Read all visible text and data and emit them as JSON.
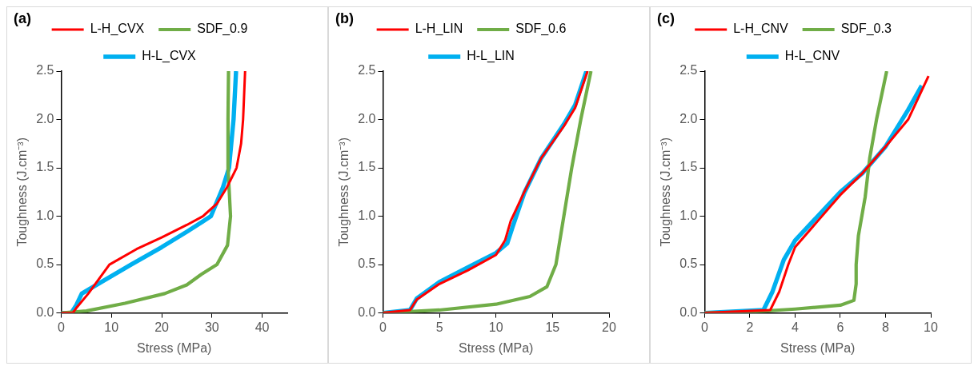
{
  "chart_data": [
    {
      "type": "line",
      "title": "(a)",
      "xlabel": "Stress (MPa)",
      "ylabel": "Toughness (J.cm⁻³)",
      "xlim": [
        0,
        45
      ],
      "xticks": [
        0,
        10,
        20,
        30,
        40
      ],
      "ylim": [
        0,
        2.5
      ],
      "yticks": [
        {
          "value": 0,
          "label": "0.0"
        },
        0.5,
        {
          "value": 1,
          "label": "1.0"
        },
        1.5,
        {
          "value": 2,
          "label": "2.0"
        },
        2.5
      ],
      "grid": false,
      "legend": "top",
      "series": [
        {
          "name": "L-H_CVX",
          "color": "#ff0000",
          "x": [
            0,
            2.3,
            3,
            5.4,
            9.6,
            15,
            20,
            25,
            28.2,
            31,
            33,
            34.9,
            35.8,
            36.2,
            36.6
          ],
          "values": [
            0,
            0,
            0.05,
            0.2,
            0.5,
            0.66,
            0.78,
            0.91,
            1.0,
            1.13,
            1.3,
            1.5,
            1.75,
            2.0,
            2.5
          ]
        },
        {
          "name": "SDF_0.9",
          "color": "#70ad47",
          "x": [
            0,
            5,
            12.7,
            20.6,
            25,
            27.9,
            31,
            33.1,
            33.7,
            33.4,
            33.2,
            33.2,
            33.3
          ],
          "values": [
            0,
            0.02,
            0.1,
            0.2,
            0.29,
            0.4,
            0.5,
            0.7,
            1.0,
            1.3,
            1.5,
            2.0,
            2.5
          ]
        },
        {
          "name": "H-L_CVX",
          "color": "#00b0f0",
          "x": [
            0,
            2,
            3,
            4.1,
            8,
            13.9,
            20,
            25,
            29.8,
            32.2,
            33.4,
            34.3,
            34.8
          ],
          "values": [
            0,
            0,
            0.08,
            0.2,
            0.32,
            0.5,
            0.68,
            0.84,
            1.0,
            1.3,
            1.5,
            2.0,
            2.5
          ]
        }
      ]
    },
    {
      "type": "line",
      "title": "(b)",
      "xlabel": "Stress (MPa)",
      "ylabel": "Toughness (J.cm⁻³)",
      "xlim": [
        0,
        20
      ],
      "xticks": [
        0,
        5,
        10,
        15,
        20
      ],
      "ylim": [
        0,
        2.5
      ],
      "yticks": [
        {
          "value": 0,
          "label": "0.0"
        },
        0.5,
        {
          "value": 1,
          "label": "1.0"
        },
        1.5,
        {
          "value": 2,
          "label": "2.0"
        },
        2.5
      ],
      "grid": false,
      "legend": "top",
      "series": [
        {
          "name": "L-H_LIN",
          "color": "#ff0000",
          "x": [
            0,
            2.4,
            3,
            5,
            7.5,
            10,
            10.8,
            11.3,
            12.5,
            14,
            16,
            17,
            18.1
          ],
          "values": [
            0,
            0.03,
            0.14,
            0.3,
            0.44,
            0.6,
            0.75,
            0.95,
            1.25,
            1.6,
            1.93,
            2.12,
            2.5
          ]
        },
        {
          "name": "SDF_0.6",
          "color": "#70ad47",
          "x": [
            0,
            5,
            10,
            13,
            14.5,
            15.3,
            16,
            16.7,
            17.5,
            18.4
          ],
          "values": [
            0,
            0.03,
            0.09,
            0.17,
            0.27,
            0.5,
            1.0,
            1.5,
            2.0,
            2.5
          ]
        },
        {
          "name": "H-L_LIN",
          "color": "#00b0f0",
          "x": [
            0,
            2.4,
            3,
            5,
            7.5,
            10,
            11,
            11.5,
            12.5,
            14,
            16,
            17,
            18
          ],
          "values": [
            0,
            0.03,
            0.15,
            0.32,
            0.47,
            0.62,
            0.72,
            0.9,
            1.24,
            1.6,
            1.95,
            2.15,
            2.5
          ]
        }
      ]
    },
    {
      "type": "line",
      "title": "(c)",
      "xlabel": "Stress (MPa)",
      "ylabel": "Toughness (J.cm⁻³)",
      "xlim": [
        0,
        10
      ],
      "xticks": [
        0,
        2,
        4,
        6,
        8,
        10
      ],
      "ylim": [
        0,
        2.5
      ],
      "yticks": [
        {
          "value": 0,
          "label": "0.0"
        },
        0.5,
        {
          "value": 1,
          "label": "1.0"
        },
        1.5,
        {
          "value": 2,
          "label": "2.0"
        },
        2.5
      ],
      "grid": false,
      "legend": "top",
      "series": [
        {
          "name": "L-H_CNV",
          "color": "#ff0000",
          "x": [
            0,
            2.9,
            3.3,
            3.7,
            4,
            5,
            6,
            7,
            8,
            9,
            9.9
          ],
          "values": [
            0,
            0.03,
            0.22,
            0.5,
            0.68,
            0.95,
            1.22,
            1.45,
            1.72,
            2.0,
            2.45
          ]
        },
        {
          "name": "SDF_0.3",
          "color": "#70ad47",
          "x": [
            0,
            2,
            4,
            6,
            6.6,
            6.7,
            6.7,
            6.8,
            7.1,
            7.3,
            7.6,
            8.05
          ],
          "values": [
            0,
            0.01,
            0.04,
            0.08,
            0.13,
            0.3,
            0.5,
            0.8,
            1.2,
            1.6,
            2.0,
            2.5
          ]
        },
        {
          "name": "H-L_CNV",
          "color": "#00b0f0",
          "x": [
            0,
            2.6,
            3,
            3.5,
            4,
            5,
            6,
            7,
            8,
            9,
            9.6
          ],
          "values": [
            0,
            0.03,
            0.22,
            0.55,
            0.75,
            1.0,
            1.25,
            1.45,
            1.72,
            2.1,
            2.35
          ]
        }
      ]
    }
  ]
}
